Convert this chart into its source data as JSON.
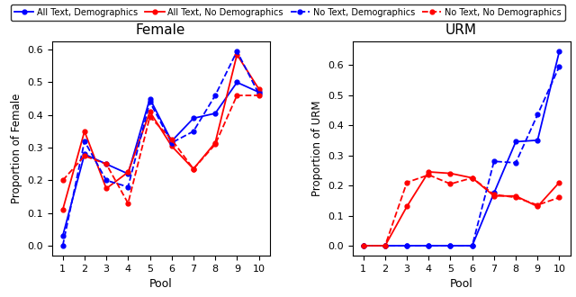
{
  "pools": [
    1,
    2,
    3,
    4,
    5,
    6,
    7,
    8,
    9,
    10
  ],
  "female": {
    "all_text_demo": [
      0.03,
      0.28,
      0.25,
      0.22,
      0.45,
      0.32,
      0.39,
      0.405,
      0.5,
      0.47
    ],
    "all_text_no_demo": [
      0.11,
      0.35,
      0.175,
      0.225,
      0.41,
      0.305,
      0.235,
      0.315,
      0.585,
      0.48
    ],
    "no_text_demo": [
      0.0,
      0.32,
      0.2,
      0.18,
      0.44,
      0.315,
      0.35,
      0.46,
      0.595,
      0.465
    ],
    "no_text_no_demo": [
      0.2,
      0.275,
      0.25,
      0.13,
      0.395,
      0.325,
      0.235,
      0.31,
      0.46,
      0.46
    ]
  },
  "urm": {
    "all_text_demo": [
      0.0,
      0.0,
      0.0,
      0.0,
      0.0,
      0.0,
      0.175,
      0.345,
      0.35,
      0.645
    ],
    "all_text_no_demo": [
      0.0,
      0.0,
      0.13,
      0.245,
      0.24,
      0.225,
      0.165,
      0.165,
      0.13,
      0.21
    ],
    "no_text_demo": [
      0.0,
      0.0,
      0.0,
      0.0,
      0.0,
      0.0,
      0.28,
      0.275,
      0.435,
      0.595
    ],
    "no_text_no_demo": [
      0.0,
      0.0,
      0.21,
      0.235,
      0.205,
      0.225,
      0.17,
      0.16,
      0.135,
      0.16
    ]
  },
  "colors": {
    "blue": "#0000ff",
    "red": "#ff0000"
  },
  "legend_labels": [
    "All Text, Demographics",
    "All Text, No Demographics",
    "No Text, Demographics",
    "No Text, No Demographics"
  ],
  "figsize": [
    6.4,
    3.3
  ],
  "dpi": 100
}
